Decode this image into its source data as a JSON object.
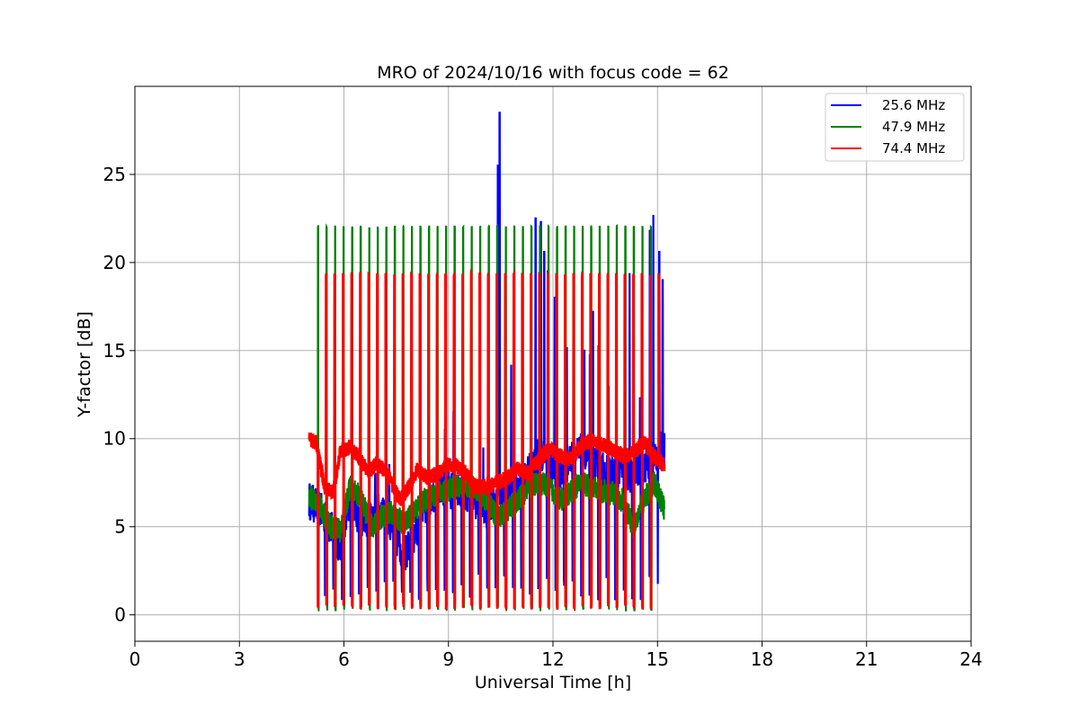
{
  "chart_data": {
    "type": "line",
    "title": "MRO of 2024/10/16 with focus code = 62",
    "xlabel": "Universal Time [h]",
    "ylabel": "Y-factor [dB]",
    "xlim": [
      0,
      24
    ],
    "ylim": [
      -1.5,
      30
    ],
    "xticks": [
      0,
      3,
      6,
      9,
      12,
      15,
      18,
      21,
      24
    ],
    "yticks": [
      0,
      5,
      10,
      15,
      20,
      25
    ],
    "grid": true,
    "legend_position": "top-right",
    "series": [
      {
        "name": "25.6 MHz",
        "color": "#0000ff",
        "baseline": [
          [
            5.0,
            6.5
          ],
          [
            5.3,
            6.0
          ],
          [
            5.6,
            5.0
          ],
          [
            5.9,
            3.8
          ],
          [
            6.2,
            6.6
          ],
          [
            6.5,
            5.2
          ],
          [
            6.8,
            5.6
          ],
          [
            7.1,
            6.0
          ],
          [
            7.4,
            5.0
          ],
          [
            7.7,
            3.2
          ],
          [
            8.0,
            4.5
          ],
          [
            8.3,
            6.0
          ],
          [
            8.6,
            7.0
          ],
          [
            8.9,
            7.2
          ],
          [
            9.2,
            7.0
          ],
          [
            9.5,
            6.8
          ],
          [
            9.8,
            6.5
          ],
          [
            10.1,
            6.0
          ],
          [
            10.4,
            6.5
          ],
          [
            10.7,
            7.0
          ],
          [
            11.0,
            7.2
          ],
          [
            11.3,
            8.0
          ],
          [
            11.6,
            9.0
          ],
          [
            11.9,
            8.5
          ],
          [
            12.2,
            8.0
          ],
          [
            12.5,
            8.8
          ],
          [
            12.8,
            9.2
          ],
          [
            13.1,
            8.6
          ],
          [
            13.4,
            8.2
          ],
          [
            13.7,
            8.0
          ],
          [
            14.0,
            8.2
          ],
          [
            14.3,
            7.8
          ],
          [
            14.6,
            8.5
          ],
          [
            14.9,
            9.0
          ],
          [
            15.2,
            9.5
          ]
        ],
        "peaks": [
          [
            6.9,
            8.0
          ],
          [
            7.3,
            8.5
          ],
          [
            8.9,
            10.5
          ],
          [
            9.15,
            11.5
          ],
          [
            9.4,
            10.0
          ],
          [
            10.0,
            9.5
          ],
          [
            10.42,
            25.5
          ],
          [
            10.47,
            28.5
          ],
          [
            10.8,
            14.2
          ],
          [
            11.5,
            22.5
          ],
          [
            11.65,
            22.3
          ],
          [
            11.75,
            20.6
          ],
          [
            11.85,
            19.5
          ],
          [
            12.05,
            18.0
          ],
          [
            12.4,
            15.2
          ],
          [
            12.6,
            11.8
          ],
          [
            12.9,
            15.0
          ],
          [
            13.05,
            14.8
          ],
          [
            13.15,
            17.2
          ],
          [
            13.3,
            15.3
          ],
          [
            13.6,
            13.0
          ],
          [
            14.2,
            19.4
          ],
          [
            14.5,
            12.3
          ],
          [
            14.78,
            21.8
          ],
          [
            14.88,
            22.7
          ],
          [
            15.05,
            20.6
          ],
          [
            15.15,
            19.0
          ]
        ]
      },
      {
        "name": "47.9 MHz",
        "color": "#008000",
        "baseline": [
          [
            5.0,
            6.8
          ],
          [
            5.3,
            6.2
          ],
          [
            5.6,
            5.0
          ],
          [
            5.9,
            4.8
          ],
          [
            6.2,
            7.5
          ],
          [
            6.5,
            6.5
          ],
          [
            6.8,
            5.0
          ],
          [
            7.1,
            5.6
          ],
          [
            7.4,
            5.8
          ],
          [
            7.7,
            5.2
          ],
          [
            8.0,
            5.8
          ],
          [
            8.3,
            6.5
          ],
          [
            8.6,
            6.8
          ],
          [
            8.9,
            7.0
          ],
          [
            9.2,
            7.3
          ],
          [
            9.5,
            7.3
          ],
          [
            9.8,
            7.2
          ],
          [
            10.1,
            6.5
          ],
          [
            10.4,
            5.5
          ],
          [
            10.7,
            6.0
          ],
          [
            11.0,
            6.5
          ],
          [
            11.3,
            7.2
          ],
          [
            11.6,
            7.5
          ],
          [
            11.9,
            7.3
          ],
          [
            12.2,
            6.5
          ],
          [
            12.5,
            7.0
          ],
          [
            12.8,
            7.5
          ],
          [
            13.1,
            7.2
          ],
          [
            13.4,
            7.0
          ],
          [
            13.7,
            6.9
          ],
          [
            14.0,
            6.5
          ],
          [
            14.3,
            5.0
          ],
          [
            14.6,
            6.5
          ],
          [
            14.9,
            7.5
          ],
          [
            15.2,
            6.0
          ]
        ],
        "pulse_high": 22.1,
        "pulse_low": 0.2,
        "pulse_start": 5.25,
        "pulse_end": 15.05,
        "pulse_period": 0.245
      },
      {
        "name": "74.4 MHz",
        "color": "#ff0000",
        "baseline": [
          [
            5.0,
            10.0
          ],
          [
            5.2,
            9.8
          ],
          [
            5.45,
            7.2
          ],
          [
            5.7,
            7.0
          ],
          [
            5.9,
            9.3
          ],
          [
            6.15,
            9.5
          ],
          [
            6.4,
            9.0
          ],
          [
            6.7,
            8.1
          ],
          [
            6.95,
            8.6
          ],
          [
            7.25,
            8.0
          ],
          [
            7.6,
            6.5
          ],
          [
            7.85,
            7.2
          ],
          [
            8.1,
            8.2
          ],
          [
            8.4,
            7.8
          ],
          [
            8.7,
            8.0
          ],
          [
            8.9,
            8.4
          ],
          [
            9.2,
            8.5
          ],
          [
            9.5,
            8.0
          ],
          [
            9.75,
            7.3
          ],
          [
            10.1,
            7.2
          ],
          [
            10.4,
            7.5
          ],
          [
            10.7,
            7.8
          ],
          [
            11.0,
            8.3
          ],
          [
            11.3,
            8.0
          ],
          [
            11.6,
            8.8
          ],
          [
            11.9,
            9.5
          ],
          [
            12.2,
            9.0
          ],
          [
            12.5,
            8.8
          ],
          [
            12.8,
            9.6
          ],
          [
            13.1,
            9.9
          ],
          [
            13.4,
            9.7
          ],
          [
            13.7,
            9.4
          ],
          [
            14.0,
            9.0
          ],
          [
            14.3,
            9.2
          ],
          [
            14.6,
            9.8
          ],
          [
            14.9,
            9.0
          ],
          [
            15.2,
            8.5
          ]
        ],
        "pulse_high": 19.4,
        "pulse_low": 0.3,
        "pulse_start": 5.25,
        "pulse_end": 15.05,
        "pulse_period": 0.245
      }
    ]
  }
}
